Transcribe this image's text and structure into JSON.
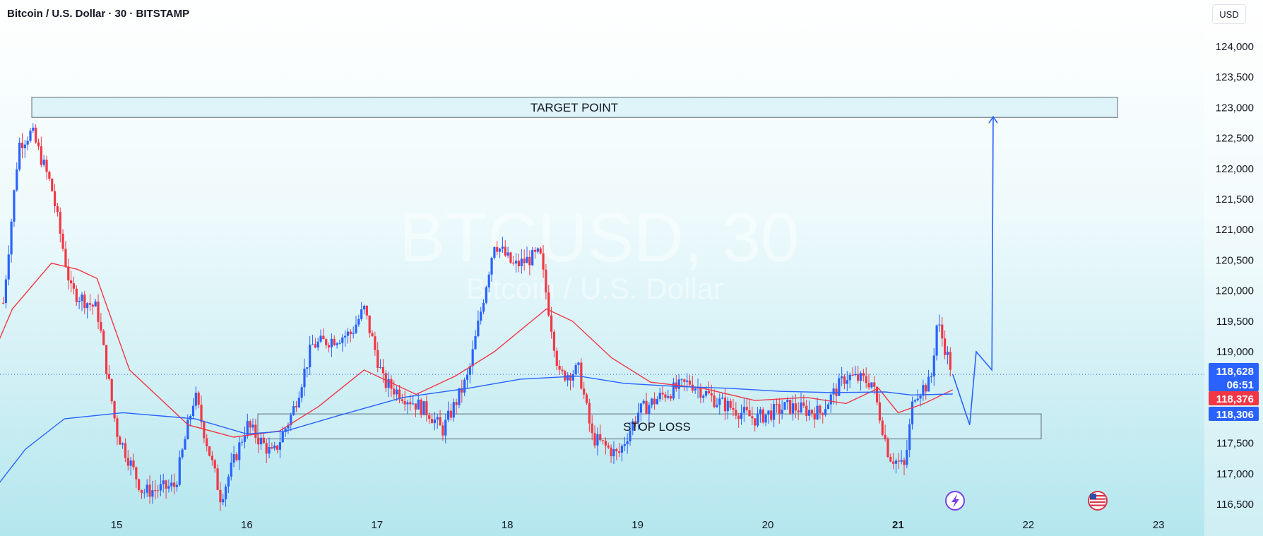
{
  "header": {
    "title": "Bitcoin / U.S. Dollar · 30 · BITSTAMP",
    "currency": "USD"
  },
  "watermark": {
    "symbol": "BTCUSD, 30",
    "name": "Bitcoin / U.S. Dollar"
  },
  "annotations": {
    "target_label": "TARGET POINT",
    "stop_label": "STOP LOSS",
    "target_zone": [
      122840,
      123170
    ],
    "stop_zone": [
      117570,
      117980
    ]
  },
  "price_tags": {
    "last_price": "118,628",
    "countdown": "06:51",
    "ma_fast": "118,376",
    "ma_slow": "118,306"
  },
  "colors": {
    "up": "#2962ff",
    "down": "#f23645",
    "ma_fast": "#f23645",
    "ma_slow": "#2962ff",
    "zone_fill": "#dff4f8",
    "zone_stroke": "#5b6b78",
    "projection": "#2962ff"
  },
  "icons": [
    "lightning-icon",
    "us-flag-icon"
  ],
  "chart_data": {
    "type": "candlestick",
    "title": "Bitcoin / U.S. Dollar · 30 · BITSTAMP",
    "y_ticks": [
      "124,000",
      "123,500",
      "123,000",
      "122,500",
      "122,000",
      "121,500",
      "121,000",
      "120,500",
      "120,000",
      "119,500",
      "119,000",
      "118,500",
      "118,000",
      "117,500",
      "117,000",
      "116,500"
    ],
    "x_ticks": [
      "15",
      "16",
      "17",
      "18",
      "19",
      "20",
      "21",
      "22",
      "23"
    ],
    "ylim": [
      116250,
      124600
    ],
    "last_price": 118628,
    "close_path": [
      {
        "day": 14.13,
        "price": 119800
      },
      {
        "day": 14.25,
        "price": 122400
      },
      {
        "day": 14.35,
        "price": 122600
      },
      {
        "day": 14.5,
        "price": 121700
      },
      {
        "day": 14.65,
        "price": 120000
      },
      {
        "day": 14.85,
        "price": 119700
      },
      {
        "day": 15.0,
        "price": 117700
      },
      {
        "day": 15.2,
        "price": 116700
      },
      {
        "day": 15.45,
        "price": 116800
      },
      {
        "day": 15.6,
        "price": 118300
      },
      {
        "day": 15.8,
        "price": 116600
      },
      {
        "day": 16.0,
        "price": 117800
      },
      {
        "day": 16.2,
        "price": 117300
      },
      {
        "day": 16.35,
        "price": 118000
      },
      {
        "day": 16.5,
        "price": 119100
      },
      {
        "day": 16.8,
        "price": 119300
      },
      {
        "day": 16.9,
        "price": 119700
      },
      {
        "day": 17.05,
        "price": 118500
      },
      {
        "day": 17.4,
        "price": 118000
      },
      {
        "day": 17.5,
        "price": 117700
      },
      {
        "day": 17.7,
        "price": 118600
      },
      {
        "day": 17.9,
        "price": 120800
      },
      {
        "day": 18.05,
        "price": 120400
      },
      {
        "day": 18.25,
        "price": 120600
      },
      {
        "day": 18.4,
        "price": 118600
      },
      {
        "day": 18.55,
        "price": 118700
      },
      {
        "day": 18.65,
        "price": 117600
      },
      {
        "day": 18.85,
        "price": 117300
      },
      {
        "day": 19.0,
        "price": 118000
      },
      {
        "day": 19.2,
        "price": 118300
      },
      {
        "day": 19.4,
        "price": 118500
      },
      {
        "day": 19.6,
        "price": 118200
      },
      {
        "day": 19.9,
        "price": 117900
      },
      {
        "day": 20.15,
        "price": 118100
      },
      {
        "day": 20.4,
        "price": 118000
      },
      {
        "day": 20.6,
        "price": 118600
      },
      {
        "day": 20.8,
        "price": 118500
      },
      {
        "day": 20.93,
        "price": 117300
      },
      {
        "day": 21.05,
        "price": 117100
      },
      {
        "day": 21.12,
        "price": 118300
      },
      {
        "day": 21.25,
        "price": 118500
      },
      {
        "day": 21.3,
        "price": 119500
      },
      {
        "day": 21.42,
        "price": 118630
      }
    ],
    "series": [
      {
        "name": "",
        "type": "ma",
        "color": "#f23645",
        "points": [
          {
            "day": 14.0,
            "price": 118700
          },
          {
            "day": 14.2,
            "price": 119700
          },
          {
            "day": 14.5,
            "price": 120450
          },
          {
            "day": 14.7,
            "price": 120350
          },
          {
            "day": 14.85,
            "price": 120200
          },
          {
            "day": 15.1,
            "price": 118700
          },
          {
            "day": 15.55,
            "price": 117800
          },
          {
            "day": 15.9,
            "price": 117600
          },
          {
            "day": 16.25,
            "price": 117700
          },
          {
            "day": 16.55,
            "price": 118100
          },
          {
            "day": 16.9,
            "price": 118700
          },
          {
            "day": 17.3,
            "price": 118300
          },
          {
            "day": 17.6,
            "price": 118600
          },
          {
            "day": 17.9,
            "price": 119000
          },
          {
            "day": 18.3,
            "price": 119700
          },
          {
            "day": 18.5,
            "price": 119500
          },
          {
            "day": 18.8,
            "price": 118900
          },
          {
            "day": 19.1,
            "price": 118500
          },
          {
            "day": 19.5,
            "price": 118400
          },
          {
            "day": 19.9,
            "price": 118200
          },
          {
            "day": 20.3,
            "price": 118250
          },
          {
            "day": 20.6,
            "price": 118150
          },
          {
            "day": 20.85,
            "price": 118400
          },
          {
            "day": 21.0,
            "price": 118000
          },
          {
            "day": 21.2,
            "price": 118150
          },
          {
            "day": 21.42,
            "price": 118376
          }
        ]
      },
      {
        "name": "",
        "type": "ma",
        "color": "#2962ff",
        "points": [
          {
            "day": 13.9,
            "price": 116300
          },
          {
            "day": 14.3,
            "price": 117400
          },
          {
            "day": 14.6,
            "price": 117900
          },
          {
            "day": 15.05,
            "price": 118000
          },
          {
            "day": 15.6,
            "price": 117900
          },
          {
            "day": 16.0,
            "price": 117650
          },
          {
            "day": 16.3,
            "price": 117700
          },
          {
            "day": 16.7,
            "price": 117950
          },
          {
            "day": 17.2,
            "price": 118250
          },
          {
            "day": 17.7,
            "price": 118400
          },
          {
            "day": 18.1,
            "price": 118550
          },
          {
            "day": 18.55,
            "price": 118600
          },
          {
            "day": 18.9,
            "price": 118480
          },
          {
            "day": 19.3,
            "price": 118430
          },
          {
            "day": 19.7,
            "price": 118400
          },
          {
            "day": 20.1,
            "price": 118350
          },
          {
            "day": 20.5,
            "price": 118330
          },
          {
            "day": 20.9,
            "price": 118340
          },
          {
            "day": 21.1,
            "price": 118290
          },
          {
            "day": 21.42,
            "price": 118306
          }
        ]
      }
    ],
    "projection": [
      {
        "day": 21.42,
        "price": 118628
      },
      {
        "day": 21.55,
        "price": 117800
      },
      {
        "day": 21.6,
        "price": 119000
      },
      {
        "day": 21.72,
        "price": 118700
      },
      {
        "day": 21.73,
        "price": 122850
      }
    ],
    "grid": false,
    "legend": "none"
  }
}
